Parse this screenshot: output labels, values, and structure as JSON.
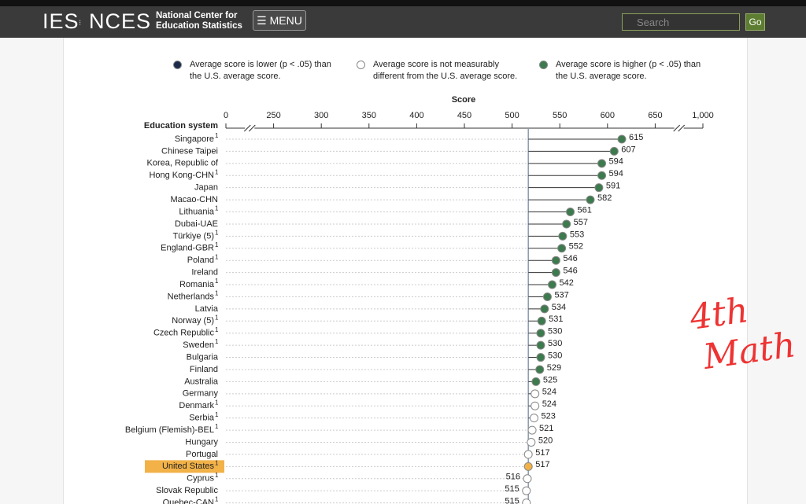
{
  "header": {
    "logo_left": "IES",
    "logo_right": "NCES",
    "org_line1": "National Center for",
    "org_line2": "Education Statistics",
    "menu": "MENU",
    "search_placeholder": "Search",
    "go": "Go"
  },
  "annotation": [
    "4th",
    "Math"
  ],
  "legend": [
    {
      "color": "#1c2b4a",
      "text": "Average score is lower (p < .05) than the U.S. average score."
    },
    {
      "color": "#ffffff",
      "text": "Average score is not measurably different from the U.S. average score."
    },
    {
      "color": "#3d7a4e",
      "text": "Average score is higher (p < .05) than the U.S. average score."
    }
  ],
  "chart_data": {
    "type": "dot",
    "x_label": "Score",
    "y_label": "Education system",
    "categories": [
      "Singapore",
      "Chinese Taipei",
      "Korea, Republic of",
      "Hong Kong-CHN",
      "Japan",
      "Macao-CHN",
      "Lithuania",
      "Dubai-UAE",
      "Türkiye (5)",
      "England-GBR",
      "Poland",
      "Ireland",
      "Romania",
      "Netherlands",
      "Latvia",
      "Norway (5)",
      "Czech Republic",
      "Sweden",
      "Bulgaria",
      "Finland",
      "Australia",
      "Germany",
      "Denmark",
      "Serbia",
      "Belgium (Flemish)-BEL",
      "Hungary",
      "Portugal",
      "United States",
      "Cyprus",
      "Slovak Republic",
      "Quebec-CAN"
    ],
    "notes": [
      "1",
      null,
      null,
      "1",
      null,
      null,
      "1",
      null,
      "1",
      "1",
      "1",
      null,
      "1",
      "1",
      null,
      "1",
      "1",
      "1",
      null,
      null,
      null,
      null,
      "1",
      "1",
      "1",
      null,
      null,
      "1",
      "1",
      null,
      "1"
    ],
    "values": [
      615,
      607,
      594,
      594,
      591,
      582,
      561,
      557,
      553,
      552,
      546,
      546,
      542,
      537,
      534,
      531,
      530,
      530,
      530,
      529,
      525,
      524,
      524,
      523,
      521,
      520,
      517,
      517,
      516,
      515,
      515
    ],
    "colors": [
      "#3d7a4e",
      "#3d7a4e",
      "#3d7a4e",
      "#3d7a4e",
      "#3d7a4e",
      "#3d7a4e",
      "#3d7a4e",
      "#3d7a4e",
      "#3d7a4e",
      "#3d7a4e",
      "#3d7a4e",
      "#3d7a4e",
      "#3d7a4e",
      "#3d7a4e",
      "#3d7a4e",
      "#3d7a4e",
      "#3d7a4e",
      "#3d7a4e",
      "#3d7a4e",
      "#3d7a4e",
      "#3d7a4e",
      "#ffffff",
      "#ffffff",
      "#ffffff",
      "#ffffff",
      "#ffffff",
      "#ffffff",
      "#f2b248",
      "#ffffff",
      "#ffffff",
      "#ffffff"
    ],
    "highlight_color": "#f2b248",
    "xlim": [
      0,
      1000
    ],
    "xticks": [
      0,
      250,
      300,
      350,
      400,
      450,
      500,
      550,
      600,
      650,
      {
        "value": 1000,
        "label": "1,000"
      }
    ],
    "axis_break": true
  }
}
